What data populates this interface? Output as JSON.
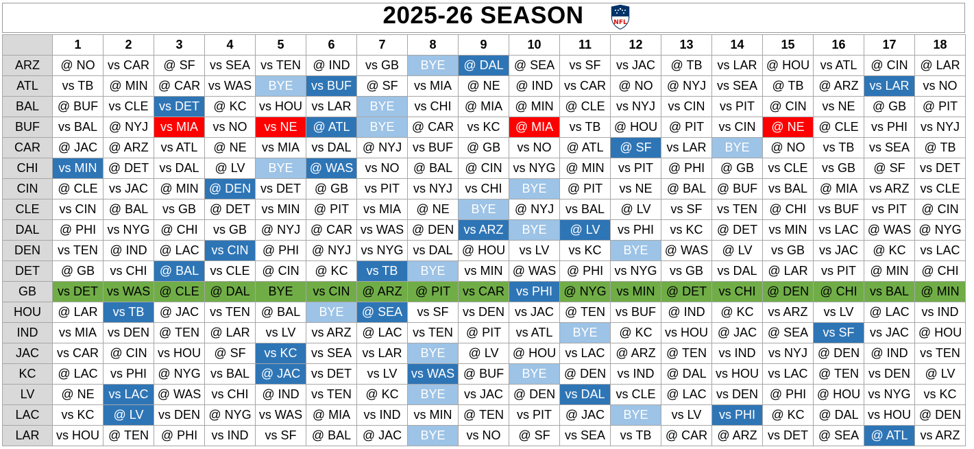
{
  "title": "2025-26 SEASON",
  "logo_text": "NFL",
  "colors": {
    "bye": "#9dc3e6",
    "highlight": "#2e75b6",
    "primetime": "#ff0000",
    "featured_team": "#70ad47",
    "team_col_bg": "#d9d9d9"
  },
  "weeks": [
    "1",
    "2",
    "3",
    "4",
    "5",
    "6",
    "7",
    "8",
    "9",
    "10",
    "11",
    "12",
    "13",
    "14",
    "15",
    "16",
    "17",
    "18"
  ],
  "highlighted_team": "GB",
  "teams": [
    {
      "team": "ARZ",
      "games": [
        [
          "@ NO",
          ""
        ],
        [
          "vs CAR",
          ""
        ],
        [
          "@ SF",
          ""
        ],
        [
          "vs SEA",
          ""
        ],
        [
          "vs TEN",
          ""
        ],
        [
          "@ IND",
          ""
        ],
        [
          "vs GB",
          ""
        ],
        [
          "BYE",
          "bye"
        ],
        [
          "@ DAL",
          "dark"
        ],
        [
          "@ SEA",
          ""
        ],
        [
          "vs SF",
          ""
        ],
        [
          "vs JAC",
          ""
        ],
        [
          "@ TB",
          ""
        ],
        [
          "vs LAR",
          ""
        ],
        [
          "@ HOU",
          ""
        ],
        [
          "vs ATL",
          ""
        ],
        [
          "@ CIN",
          ""
        ],
        [
          "@ LAR",
          ""
        ]
      ]
    },
    {
      "team": "ATL",
      "games": [
        [
          "vs TB",
          ""
        ],
        [
          "@ MIN",
          ""
        ],
        [
          "@ CAR",
          ""
        ],
        [
          "vs WAS",
          ""
        ],
        [
          "BYE",
          "bye"
        ],
        [
          "vs BUF",
          "dark"
        ],
        [
          "@ SF",
          ""
        ],
        [
          "vs MIA",
          ""
        ],
        [
          "@ NE",
          ""
        ],
        [
          "@ IND",
          ""
        ],
        [
          "vs CAR",
          ""
        ],
        [
          "@ NO",
          ""
        ],
        [
          "@ NYJ",
          ""
        ],
        [
          "vs SEA",
          ""
        ],
        [
          "@ TB",
          ""
        ],
        [
          "@ ARZ",
          ""
        ],
        [
          "vs LAR",
          "dark"
        ],
        [
          "vs NO",
          ""
        ]
      ]
    },
    {
      "team": "BAL",
      "games": [
        [
          "@ BUF",
          ""
        ],
        [
          "vs CLE",
          ""
        ],
        [
          "vs DET",
          "dark"
        ],
        [
          "@ KC",
          ""
        ],
        [
          "vs HOU",
          ""
        ],
        [
          "vs LAR",
          ""
        ],
        [
          "BYE",
          "bye"
        ],
        [
          "vs CHI",
          ""
        ],
        [
          "@ MIA",
          ""
        ],
        [
          "@ MIN",
          ""
        ],
        [
          "@ CLE",
          ""
        ],
        [
          "vs NYJ",
          ""
        ],
        [
          "vs CIN",
          ""
        ],
        [
          "vs PIT",
          ""
        ],
        [
          "@ CIN",
          ""
        ],
        [
          "vs NE",
          ""
        ],
        [
          "@ GB",
          ""
        ],
        [
          "@ PIT",
          ""
        ]
      ]
    },
    {
      "team": "BUF",
      "games": [
        [
          "vs BAL",
          ""
        ],
        [
          "@ NYJ",
          ""
        ],
        [
          "vs MIA",
          "red"
        ],
        [
          "vs NO",
          ""
        ],
        [
          "vs NE",
          "red"
        ],
        [
          "@ ATL",
          "dark"
        ],
        [
          "BYE",
          "bye"
        ],
        [
          "@ CAR",
          ""
        ],
        [
          "vs KC",
          ""
        ],
        [
          "@ MIA",
          "red"
        ],
        [
          "vs TB",
          ""
        ],
        [
          "@ HOU",
          ""
        ],
        [
          "@ PIT",
          ""
        ],
        [
          "vs CIN",
          ""
        ],
        [
          "@ NE",
          "red"
        ],
        [
          "@ CLE",
          ""
        ],
        [
          "vs PHI",
          ""
        ],
        [
          "vs NYJ",
          ""
        ]
      ]
    },
    {
      "team": "CAR",
      "games": [
        [
          "@ JAC",
          ""
        ],
        [
          "@ ARZ",
          ""
        ],
        [
          "vs ATL",
          ""
        ],
        [
          "@ NE",
          ""
        ],
        [
          "vs MIA",
          ""
        ],
        [
          "vs DAL",
          ""
        ],
        [
          "@ NYJ",
          ""
        ],
        [
          "vs BUF",
          ""
        ],
        [
          "@ GB",
          ""
        ],
        [
          "vs NO",
          ""
        ],
        [
          "@ ATL",
          ""
        ],
        [
          "@ SF",
          "dark"
        ],
        [
          "vs LAR",
          ""
        ],
        [
          "BYE",
          "bye"
        ],
        [
          "@ NO",
          ""
        ],
        [
          "vs TB",
          ""
        ],
        [
          "vs SEA",
          ""
        ],
        [
          "@ TB",
          ""
        ]
      ]
    },
    {
      "team": "CHI",
      "games": [
        [
          "vs MIN",
          "dark"
        ],
        [
          "@ DET",
          ""
        ],
        [
          "vs DAL",
          ""
        ],
        [
          "@ LV",
          ""
        ],
        [
          "BYE",
          "bye"
        ],
        [
          "@ WAS",
          "dark"
        ],
        [
          "vs NO",
          ""
        ],
        [
          "@ BAL",
          ""
        ],
        [
          "@ CIN",
          ""
        ],
        [
          "vs NYG",
          ""
        ],
        [
          "@ MIN",
          ""
        ],
        [
          "vs PIT",
          ""
        ],
        [
          "@ PHI",
          ""
        ],
        [
          "@ GB",
          ""
        ],
        [
          "vs CLE",
          ""
        ],
        [
          "vs GB",
          ""
        ],
        [
          "@ SF",
          ""
        ],
        [
          "vs DET",
          ""
        ]
      ]
    },
    {
      "team": "CIN",
      "games": [
        [
          "@ CLE",
          ""
        ],
        [
          "vs JAC",
          ""
        ],
        [
          "@ MIN",
          ""
        ],
        [
          "@ DEN",
          "dark"
        ],
        [
          "vs DET",
          ""
        ],
        [
          "@ GB",
          ""
        ],
        [
          "vs PIT",
          ""
        ],
        [
          "vs NYJ",
          ""
        ],
        [
          "vs CHI",
          ""
        ],
        [
          "BYE",
          "bye"
        ],
        [
          "@ PIT",
          ""
        ],
        [
          "vs NE",
          ""
        ],
        [
          "@ BAL",
          ""
        ],
        [
          "@ BUF",
          ""
        ],
        [
          "vs BAL",
          ""
        ],
        [
          "@ MIA",
          ""
        ],
        [
          "vs ARZ",
          ""
        ],
        [
          "vs CLE",
          ""
        ]
      ]
    },
    {
      "team": "CLE",
      "games": [
        [
          "vs CIN",
          ""
        ],
        [
          "@ BAL",
          ""
        ],
        [
          "vs GB",
          ""
        ],
        [
          "@ DET",
          ""
        ],
        [
          "vs MIN",
          ""
        ],
        [
          "@ PIT",
          ""
        ],
        [
          "vs MIA",
          ""
        ],
        [
          "@ NE",
          ""
        ],
        [
          "BYE",
          "bye"
        ],
        [
          "@ NYJ",
          ""
        ],
        [
          "vs BAL",
          ""
        ],
        [
          "@ LV",
          ""
        ],
        [
          "vs SF",
          ""
        ],
        [
          "vs TEN",
          ""
        ],
        [
          "@ CHI",
          ""
        ],
        [
          "vs BUF",
          ""
        ],
        [
          "vs PIT",
          ""
        ],
        [
          "@ CIN",
          ""
        ]
      ]
    },
    {
      "team": "DAL",
      "games": [
        [
          "@ PHI",
          ""
        ],
        [
          "vs NYG",
          ""
        ],
        [
          "@ CHI",
          ""
        ],
        [
          "vs GB",
          ""
        ],
        [
          "@ NYJ",
          ""
        ],
        [
          "@ CAR",
          ""
        ],
        [
          "vs WAS",
          ""
        ],
        [
          "@ DEN",
          ""
        ],
        [
          "vs ARZ",
          "dark"
        ],
        [
          "BYE",
          "bye"
        ],
        [
          "@ LV",
          "dark"
        ],
        [
          "vs PHI",
          ""
        ],
        [
          "vs KC",
          ""
        ],
        [
          "@ DET",
          ""
        ],
        [
          "vs MIN",
          ""
        ],
        [
          "vs LAC",
          ""
        ],
        [
          "@ WAS",
          ""
        ],
        [
          "@ NYG",
          ""
        ]
      ]
    },
    {
      "team": "DEN",
      "games": [
        [
          "vs TEN",
          ""
        ],
        [
          "@ IND",
          ""
        ],
        [
          "@ LAC",
          ""
        ],
        [
          "vs CIN",
          "dark"
        ],
        [
          "@ PHI",
          ""
        ],
        [
          "@ NYJ",
          ""
        ],
        [
          "vs NYG",
          ""
        ],
        [
          "vs DAL",
          ""
        ],
        [
          "@ HOU",
          ""
        ],
        [
          "vs LV",
          ""
        ],
        [
          "vs KC",
          ""
        ],
        [
          "BYE",
          "bye"
        ],
        [
          "@ WAS",
          ""
        ],
        [
          "@ LV",
          ""
        ],
        [
          "vs GB",
          ""
        ],
        [
          "vs JAC",
          ""
        ],
        [
          "@ KC",
          ""
        ],
        [
          "vs LAC",
          ""
        ]
      ]
    },
    {
      "team": "DET",
      "games": [
        [
          "@ GB",
          ""
        ],
        [
          "vs CHI",
          ""
        ],
        [
          "@ BAL",
          "dark"
        ],
        [
          "vs CLE",
          ""
        ],
        [
          "@ CIN",
          ""
        ],
        [
          "@ KC",
          ""
        ],
        [
          "vs TB",
          "dark"
        ],
        [
          "BYE",
          "bye"
        ],
        [
          "vs MIN",
          ""
        ],
        [
          "@ WAS",
          ""
        ],
        [
          "@ PHI",
          ""
        ],
        [
          "vs NYG",
          ""
        ],
        [
          "vs GB",
          ""
        ],
        [
          "vs DAL",
          ""
        ],
        [
          "@ LAR",
          ""
        ],
        [
          "vs PIT",
          ""
        ],
        [
          "@ MIN",
          ""
        ],
        [
          "@ CHI",
          ""
        ]
      ]
    },
    {
      "team": "GB",
      "games": [
        [
          "vs DET",
          ""
        ],
        [
          "vs WAS",
          ""
        ],
        [
          "@ CLE",
          ""
        ],
        [
          "@ DAL",
          ""
        ],
        [
          "BYE",
          ""
        ],
        [
          "vs CIN",
          ""
        ],
        [
          "@ ARZ",
          ""
        ],
        [
          "@ PIT",
          ""
        ],
        [
          "vs CAR",
          ""
        ],
        [
          "vs PHI",
          "dark"
        ],
        [
          "@ NYG",
          ""
        ],
        [
          "vs MIN",
          ""
        ],
        [
          "@ DET",
          ""
        ],
        [
          "vs CHI",
          ""
        ],
        [
          "@ DEN",
          ""
        ],
        [
          "@ CHI",
          ""
        ],
        [
          "vs BAL",
          ""
        ],
        [
          "@ MIN",
          ""
        ]
      ]
    },
    {
      "team": "HOU",
      "games": [
        [
          "@ LAR",
          ""
        ],
        [
          "vs TB",
          "dark"
        ],
        [
          "@ JAC",
          ""
        ],
        [
          "vs TEN",
          ""
        ],
        [
          "@ BAL",
          ""
        ],
        [
          "BYE",
          "bye"
        ],
        [
          "@ SEA",
          "dark"
        ],
        [
          "vs SF",
          ""
        ],
        [
          "vs DEN",
          ""
        ],
        [
          "vs JAC",
          ""
        ],
        [
          "@ TEN",
          ""
        ],
        [
          "vs BUF",
          ""
        ],
        [
          "@ IND",
          ""
        ],
        [
          "@ KC",
          ""
        ],
        [
          "vs ARZ",
          ""
        ],
        [
          "vs LV",
          ""
        ],
        [
          "@ LAC",
          ""
        ],
        [
          "vs IND",
          ""
        ]
      ]
    },
    {
      "team": "IND",
      "games": [
        [
          "vs MIA",
          ""
        ],
        [
          "vs DEN",
          ""
        ],
        [
          "@ TEN",
          ""
        ],
        [
          "@ LAR",
          ""
        ],
        [
          "vs LV",
          ""
        ],
        [
          "vs ARZ",
          ""
        ],
        [
          "@ LAC",
          ""
        ],
        [
          "vs TEN",
          ""
        ],
        [
          "@ PIT",
          ""
        ],
        [
          "vs ATL",
          ""
        ],
        [
          "BYE",
          "bye"
        ],
        [
          "@ KC",
          ""
        ],
        [
          "vs HOU",
          ""
        ],
        [
          "@ JAC",
          ""
        ],
        [
          "@ SEA",
          ""
        ],
        [
          "vs SF",
          "dark"
        ],
        [
          "vs JAC",
          ""
        ],
        [
          "@ HOU",
          ""
        ]
      ]
    },
    {
      "team": "JAC",
      "games": [
        [
          "vs CAR",
          ""
        ],
        [
          "@ CIN",
          ""
        ],
        [
          "vs HOU",
          ""
        ],
        [
          "@ SF",
          ""
        ],
        [
          "vs KC",
          "dark"
        ],
        [
          "vs SEA",
          ""
        ],
        [
          "vs LAR",
          ""
        ],
        [
          "BYE",
          "bye"
        ],
        [
          "@ LV",
          ""
        ],
        [
          "@ HOU",
          ""
        ],
        [
          "vs LAC",
          ""
        ],
        [
          "@ ARZ",
          ""
        ],
        [
          "@ TEN",
          ""
        ],
        [
          "vs IND",
          ""
        ],
        [
          "vs NYJ",
          ""
        ],
        [
          "@ DEN",
          ""
        ],
        [
          "@ IND",
          ""
        ],
        [
          "vs TEN",
          ""
        ]
      ]
    },
    {
      "team": "KC",
      "games": [
        [
          "@ LAC",
          ""
        ],
        [
          "vs PHI",
          ""
        ],
        [
          "@ NYG",
          ""
        ],
        [
          "vs BAL",
          ""
        ],
        [
          "@ JAC",
          "dark"
        ],
        [
          "vs DET",
          ""
        ],
        [
          "vs LV",
          ""
        ],
        [
          "vs WAS",
          "dark"
        ],
        [
          "@ BUF",
          ""
        ],
        [
          "BYE",
          "bye"
        ],
        [
          "@ DEN",
          ""
        ],
        [
          "vs IND",
          ""
        ],
        [
          "@ DAL",
          ""
        ],
        [
          "vs HOU",
          ""
        ],
        [
          "vs LAC",
          ""
        ],
        [
          "@ TEN",
          ""
        ],
        [
          "vs DEN",
          ""
        ],
        [
          "@ LV",
          ""
        ]
      ]
    },
    {
      "team": "LV",
      "games": [
        [
          "@ NE",
          ""
        ],
        [
          "vs LAC",
          "dark"
        ],
        [
          "@ WAS",
          ""
        ],
        [
          "vs CHI",
          ""
        ],
        [
          "@ IND",
          ""
        ],
        [
          "vs TEN",
          ""
        ],
        [
          "@ KC",
          ""
        ],
        [
          "BYE",
          "bye"
        ],
        [
          "vs JAC",
          ""
        ],
        [
          "@ DEN",
          ""
        ],
        [
          "vs DAL",
          "dark"
        ],
        [
          "vs CLE",
          ""
        ],
        [
          "@ LAC",
          ""
        ],
        [
          "vs DEN",
          ""
        ],
        [
          "@ PHI",
          ""
        ],
        [
          "@ HOU",
          ""
        ],
        [
          "vs NYG",
          ""
        ],
        [
          "vs KC",
          ""
        ]
      ]
    },
    {
      "team": "LAC",
      "games": [
        [
          "vs KC",
          ""
        ],
        [
          "@ LV",
          "dark"
        ],
        [
          "vs DEN",
          ""
        ],
        [
          "@ NYG",
          ""
        ],
        [
          "vs WAS",
          ""
        ],
        [
          "@ MIA",
          ""
        ],
        [
          "vs IND",
          ""
        ],
        [
          "vs MIN",
          ""
        ],
        [
          "@ TEN",
          ""
        ],
        [
          "vs PIT",
          ""
        ],
        [
          "@ JAC",
          ""
        ],
        [
          "BYE",
          "bye"
        ],
        [
          "vs LV",
          ""
        ],
        [
          "vs PHI",
          "dark"
        ],
        [
          "@ KC",
          ""
        ],
        [
          "@ DAL",
          ""
        ],
        [
          "vs HOU",
          ""
        ],
        [
          "@ DEN",
          ""
        ]
      ]
    },
    {
      "team": "LAR",
      "games": [
        [
          "vs HOU",
          ""
        ],
        [
          "@ TEN",
          ""
        ],
        [
          "@ PHI",
          ""
        ],
        [
          "vs IND",
          ""
        ],
        [
          "vs SF",
          ""
        ],
        [
          "@ BAL",
          ""
        ],
        [
          "@ JAC",
          ""
        ],
        [
          "BYE",
          "bye"
        ],
        [
          "vs NO",
          ""
        ],
        [
          "@ SF",
          ""
        ],
        [
          "vs SEA",
          ""
        ],
        [
          "vs TB",
          ""
        ],
        [
          "@ CAR",
          ""
        ],
        [
          "@ ARZ",
          ""
        ],
        [
          "vs DET",
          ""
        ],
        [
          "@ SEA",
          ""
        ],
        [
          "@ ATL",
          "dark"
        ],
        [
          "vs ARZ",
          ""
        ]
      ]
    }
  ]
}
